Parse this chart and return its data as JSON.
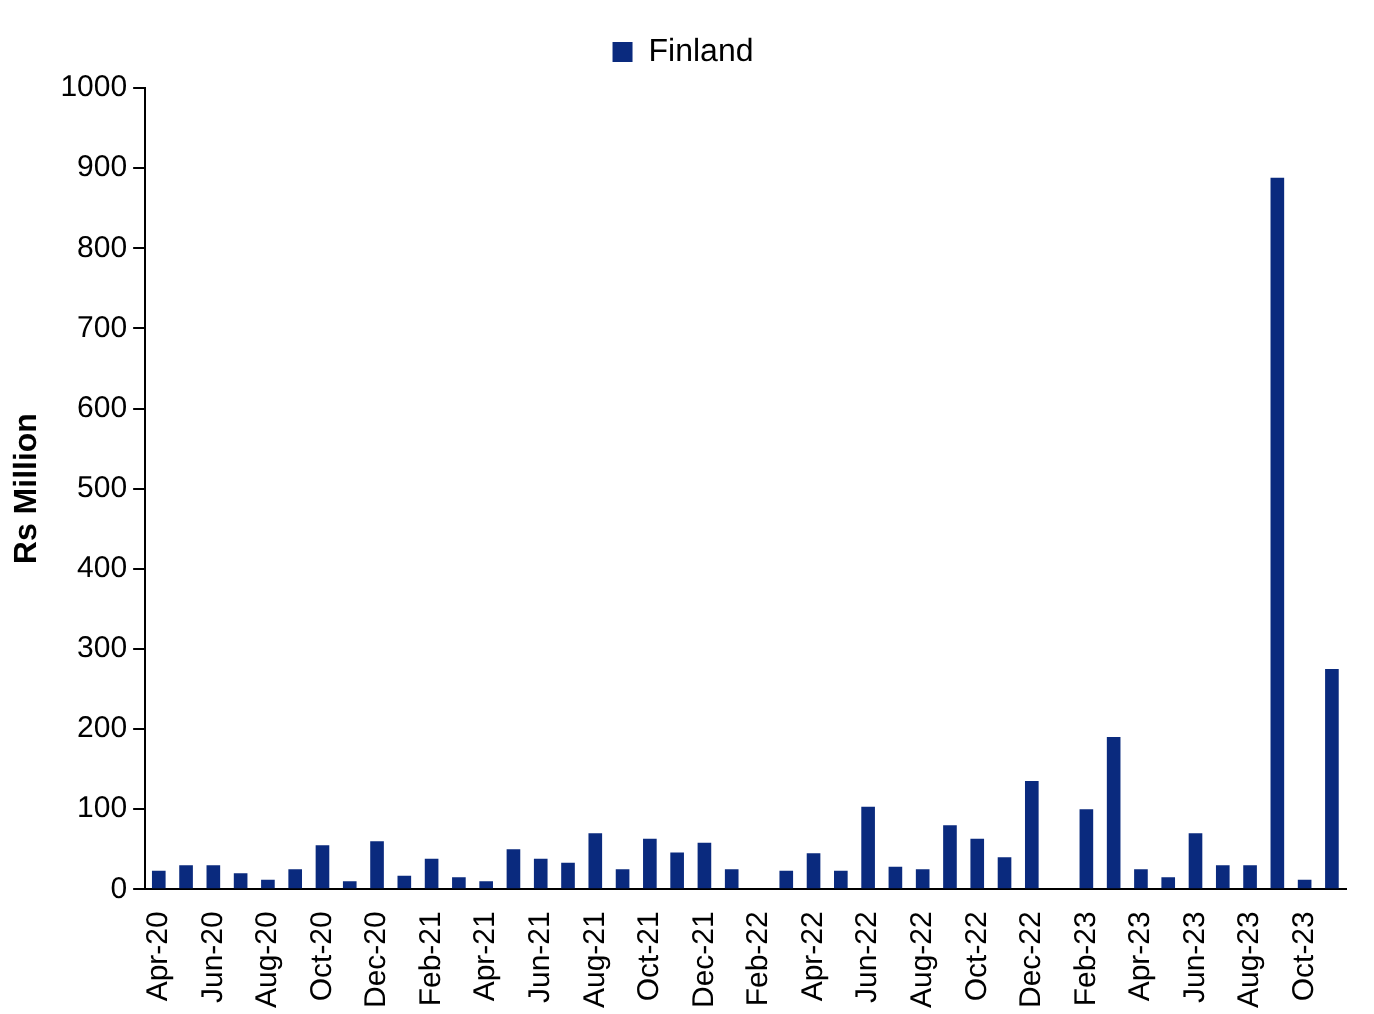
{
  "chart_data": {
    "type": "bar",
    "ylabel": "Rs Million",
    "categories": [
      "Apr-20",
      null,
      "Jun-20",
      null,
      "Aug-20",
      null,
      "Oct-20",
      null,
      "Dec-20",
      null,
      "Feb-21",
      null,
      "Apr-21",
      null,
      "Jun-21",
      null,
      "Aug-21",
      null,
      "Oct-21",
      null,
      "Dec-21",
      null,
      "Feb-22",
      null,
      "Apr-22",
      null,
      "Jun-22",
      null,
      "Aug-22",
      null,
      "Oct-22",
      null,
      "Dec-22",
      null,
      "Feb-23",
      null,
      "Apr-23",
      null,
      "Jun-23",
      null,
      "Aug-23",
      null,
      "Oct-23",
      null
    ],
    "series": [
      {
        "name": "Finland",
        "color": "#0a2a7e",
        "values": [
          23,
          30,
          30,
          20,
          12,
          25,
          55,
          10,
          60,
          17,
          38,
          15,
          10,
          50,
          38,
          33,
          70,
          25,
          63,
          46,
          58,
          25,
          0,
          23,
          45,
          23,
          103,
          28,
          25,
          80,
          63,
          40,
          135,
          0,
          100,
          190,
          25,
          15,
          70,
          30,
          30,
          888,
          12,
          275
        ]
      }
    ],
    "ylim": [
      0,
      1000
    ],
    "yticks": [
      0,
      100,
      200,
      300,
      400,
      500,
      600,
      700,
      800,
      900,
      1000
    ],
    "grid": false,
    "legend": "top"
  }
}
